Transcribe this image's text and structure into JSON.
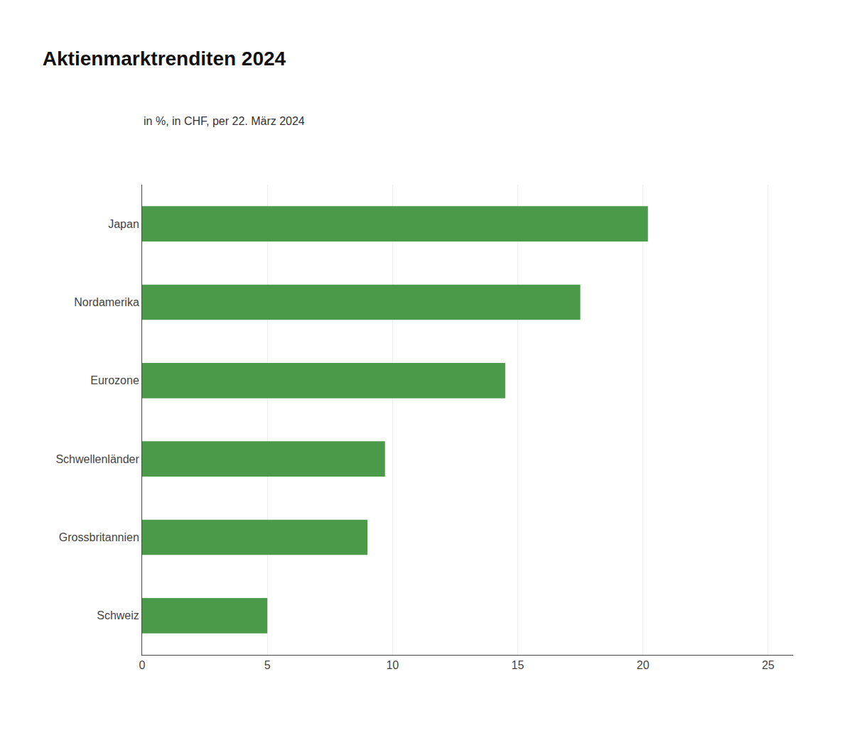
{
  "chart_data": {
    "type": "bar",
    "orientation": "horizontal",
    "title": "Aktienmarktrenditen 2024",
    "subtitle": "in %, in CHF, per 22. März 2024",
    "categories": [
      "Schweiz",
      "Grossbritannien",
      "Schwellenländer",
      "Eurozone",
      "Nordamerika",
      "Japan"
    ],
    "values": [
      5,
      9,
      9.7,
      14.5,
      17.5,
      20.2
    ],
    "color": "#4a9a4a",
    "xlim": [
      0,
      26
    ],
    "xticks": [
      0,
      5,
      10,
      15,
      20,
      25
    ],
    "grid": true
  }
}
